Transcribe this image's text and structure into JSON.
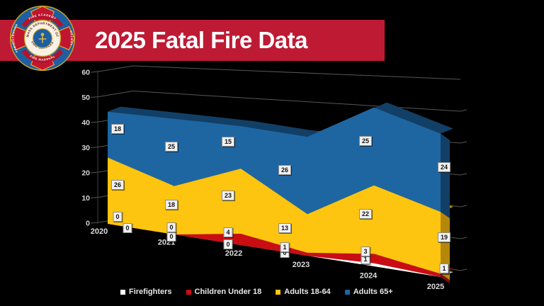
{
  "header": {
    "title": "2025 Fatal Fire Data",
    "banner_color": "#BE1A34"
  },
  "logo": {
    "ring_top": "FIRE ACADEMY",
    "ring_bottom": "FIRE MARSHAL",
    "ring_left": "ADMINISTRATION",
    "ring_right": "HAZMAT",
    "inner_top": "MASS DEPARTMENT OF",
    "inner_bottom": "FIRE SERVICES"
  },
  "chart_data": {
    "type": "area",
    "style": "3d-stacked-area",
    "title": "2025 Fatal Fire Data",
    "categories": [
      "2020",
      "2021",
      "2022",
      "2023",
      "2024",
      "2025"
    ],
    "series": [
      {
        "name": "Firefighters",
        "color": "#FFFFFF",
        "dark": "#BDBDBD",
        "values": [
          0,
          0,
          0,
          0,
          1,
          0
        ]
      },
      {
        "name": "Children Under 18",
        "color": "#C90E13",
        "dark": "#860A0E",
        "values": [
          0,
          0,
          4,
          1,
          3,
          1
        ]
      },
      {
        "name": "Adults 18-64",
        "color": "#FDC50F",
        "dark": "#B5870A",
        "values": [
          26,
          18,
          23,
          13,
          22,
          19
        ]
      },
      {
        "name": "Adults 65+",
        "color": "#1E66A1",
        "dark": "#123F66",
        "values": [
          18,
          25,
          15,
          26,
          25,
          24
        ]
      }
    ],
    "y_axis": {
      "min": 0,
      "max": 60,
      "step": 10
    },
    "ylim": [
      0,
      60
    ],
    "grid": true,
    "legend_position": "bottom",
    "grid_color": "#565656",
    "text_color": "#D6D6D6"
  }
}
